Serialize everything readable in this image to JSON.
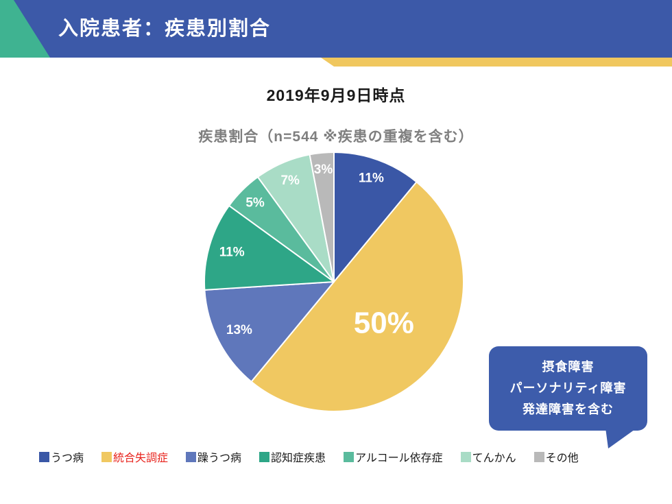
{
  "header": {
    "title": "入院患者：疾患別割合",
    "banner_color": "#3C59A8",
    "accent_teal_color": "#3FB391",
    "accent_yellow_color": "#F0C75E"
  },
  "date_heading": "2019年9月9日時点",
  "chart_data": {
    "type": "pie",
    "title": "疾患割合（n=544 ※疾患の重複を含む）",
    "n": 544,
    "start_angle_deg": 0,
    "direction": "clockwise",
    "legend_position": "bottom",
    "label_color": "#FFFFFF",
    "slices": [
      {
        "label": "うつ病",
        "value": 11,
        "display": "11%",
        "color": "#3A57A6",
        "label_r": 0.85,
        "label_size": 19
      },
      {
        "label": "統合失調症",
        "value": 50,
        "display": "50%",
        "color": "#F0C861",
        "label_r": 0.5,
        "label_size": 44
      },
      {
        "label": "躁うつ病",
        "value": 13,
        "display": "13%",
        "color": "#5F77BB",
        "label_r": 0.82,
        "label_size": 19
      },
      {
        "label": "認知症疾患",
        "value": 11,
        "display": "11%",
        "color": "#2EA687",
        "label_r": 0.82,
        "label_size": 19
      },
      {
        "label": "アルコール依存症",
        "value": 5,
        "display": "5%",
        "color": "#5ABB9D",
        "label_r": 0.86,
        "label_size": 19
      },
      {
        "label": "てんかん",
        "value": 7,
        "display": "7%",
        "color": "#A9DCC6",
        "label_r": 0.85,
        "label_size": 19
      },
      {
        "label": "その他",
        "value": 3,
        "display": "3%",
        "color": "#B9B9B9",
        "label_r": 0.87,
        "label_size": 19
      }
    ]
  },
  "callout": {
    "lines": [
      "摂食障害",
      "パーソナリティ障害",
      "発達障害を含む"
    ],
    "bg_color": "#3D5CAB",
    "text_color": "#FFFFFF"
  },
  "legend": {
    "items": [
      {
        "label": "うつ病",
        "color": "#3A57A6",
        "text_color": "#1A1A1A"
      },
      {
        "label": "統合失調症",
        "color": "#F0C861",
        "text_color": "#E8231D"
      },
      {
        "label": "躁うつ病",
        "color": "#5F77BB",
        "text_color": "#1A1A1A"
      },
      {
        "label": "認知症疾患",
        "color": "#2EA687",
        "text_color": "#1A1A1A"
      },
      {
        "label": "アルコール依存症",
        "color": "#5ABB9D",
        "text_color": "#1A1A1A"
      },
      {
        "label": "てんかん",
        "color": "#A9DCC6",
        "text_color": "#1A1A1A"
      },
      {
        "label": "その他",
        "color": "#B9B9B9",
        "text_color": "#1A1A1A"
      }
    ]
  }
}
